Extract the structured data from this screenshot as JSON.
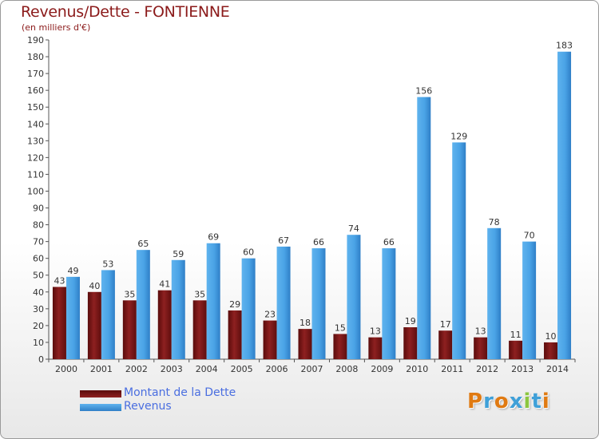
{
  "header": {
    "title": "Revenus/Dette - FONTIENNE",
    "subtitle": "(en milliers d'€)"
  },
  "legend": {
    "items": [
      {
        "label": "Montant de la Dette",
        "color": "#7a1616"
      },
      {
        "label": "Revenus",
        "color": "#4aa3e6"
      }
    ]
  },
  "logo": {
    "text": "Proxiti",
    "colors": [
      "#e07a12",
      "#3fa0d8",
      "#e07a12",
      "#3fa0d8",
      "#8cc63f",
      "#3fa0d8",
      "#e07a12"
    ]
  },
  "chart_data": {
    "type": "bar",
    "title": "Revenus/Dette - FONTIENNE",
    "ylabel": "(en milliers d'€)",
    "categories": [
      "2000",
      "2001",
      "2002",
      "2003",
      "2004",
      "2005",
      "2006",
      "2007",
      "2008",
      "2009",
      "2010",
      "2011",
      "2012",
      "2013",
      "2014"
    ],
    "series": [
      {
        "name": "Montant de la Dette",
        "color": "#7a1616",
        "values": [
          43,
          40,
          35,
          41,
          35,
          29,
          23,
          18,
          15,
          13,
          19,
          17,
          13,
          11,
          10
        ]
      },
      {
        "name": "Revenus",
        "color": "#4aa3e6",
        "values": [
          49,
          53,
          65,
          59,
          69,
          60,
          67,
          66,
          74,
          66,
          156,
          129,
          78,
          70,
          183
        ]
      }
    ],
    "ylim": [
      0,
      190
    ],
    "ytick_step": 10,
    "grid": false,
    "legend_position": "bottom-left"
  }
}
